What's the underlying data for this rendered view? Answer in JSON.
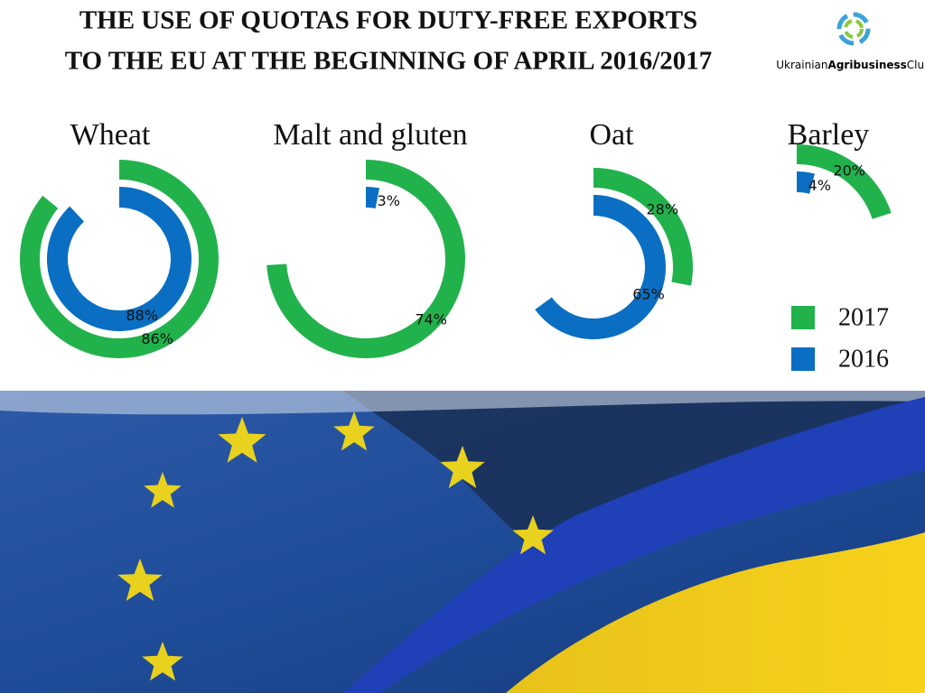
{
  "chart_data": {
    "type": "radial_bar",
    "title": [
      "THE USE OF QUOTAS FOR DUTY-FREE EXPORTS",
      "TO THE EU AT THE BEGINNING OF APRIL 2016/2017"
    ],
    "categories": [
      "Wheat",
      "Malt and gluten",
      "Oat",
      "Barley"
    ],
    "series": [
      {
        "name": "2017",
        "color": "#22b24c",
        "values": [
          86,
          74,
          28,
          20
        ],
        "value_labels": [
          "86%",
          "74%",
          "28%",
          "20%"
        ]
      },
      {
        "name": "2016",
        "color": "#0a6fc2",
        "values": [
          88,
          3,
          65,
          4
        ],
        "value_labels": [
          "88%",
          "3%",
          "65%",
          "4%"
        ]
      }
    ]
  },
  "logo": {
    "parts": [
      "Ukrainian",
      "Agribusiness",
      "Club"
    ]
  }
}
